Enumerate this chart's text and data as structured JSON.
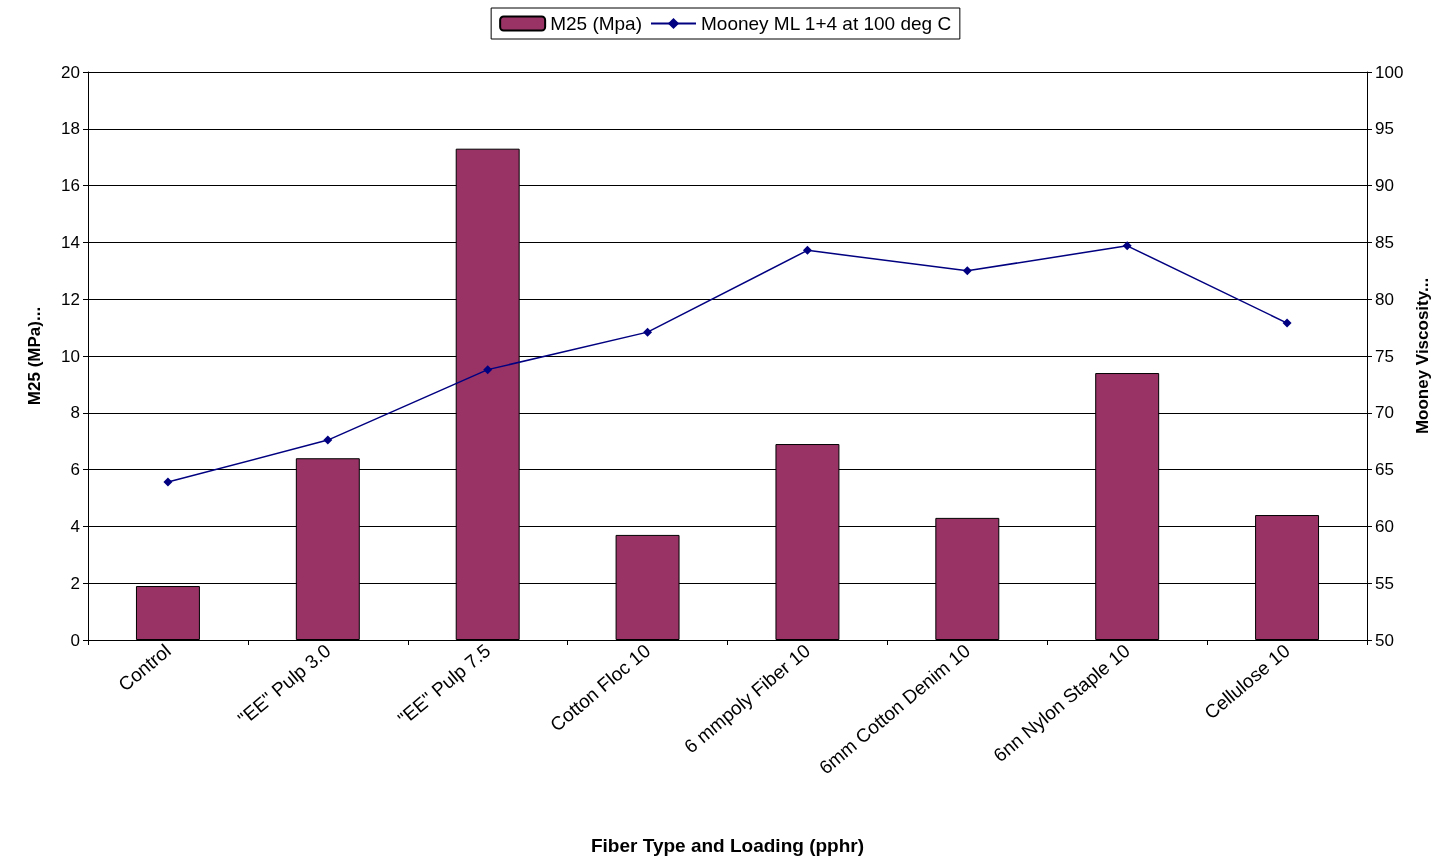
{
  "chart_data": {
    "type": "bar",
    "xlabel": "Fiber Type and Loading (pphr)",
    "ylabel": "M25 (MPa)...",
    "y2label": "Mooney Viscosity...",
    "categories": [
      "Control",
      "\"EE\" Pulp 3.0",
      "\"EE\" Pulp 7.5",
      "Cotton Floc 10",
      "6 mmpoly Fiber 10",
      "6mm Cotton Denim 10",
      "6nn Nylon Staple 10",
      "Cellulose 10"
    ],
    "series": [
      {
        "name": "M25 (Mpa)",
        "color": "#993366",
        "values": [
          1.9,
          6.4,
          17.3,
          3.7,
          6.9,
          4.3,
          9.4,
          4.4
        ]
      },
      {
        "name": "Mooney ML 1+4 at 100 deg C",
        "type": "line",
        "axis": "y2",
        "color": "#000080",
        "marker": "diamond",
        "values": [
          63.9,
          67.6,
          73.8,
          77.1,
          84.3,
          82.5,
          84.7,
          77.9
        ]
      }
    ],
    "ylim": [
      0,
      20
    ],
    "yticks": [
      0,
      2,
      4,
      6,
      8,
      10,
      12,
      14,
      16,
      18,
      20
    ],
    "y2lim": [
      50,
      100
    ],
    "y2ticks": [
      50,
      55,
      60,
      65,
      70,
      75,
      80,
      85,
      90,
      95,
      100
    ],
    "grid": "y",
    "legend": "top"
  }
}
